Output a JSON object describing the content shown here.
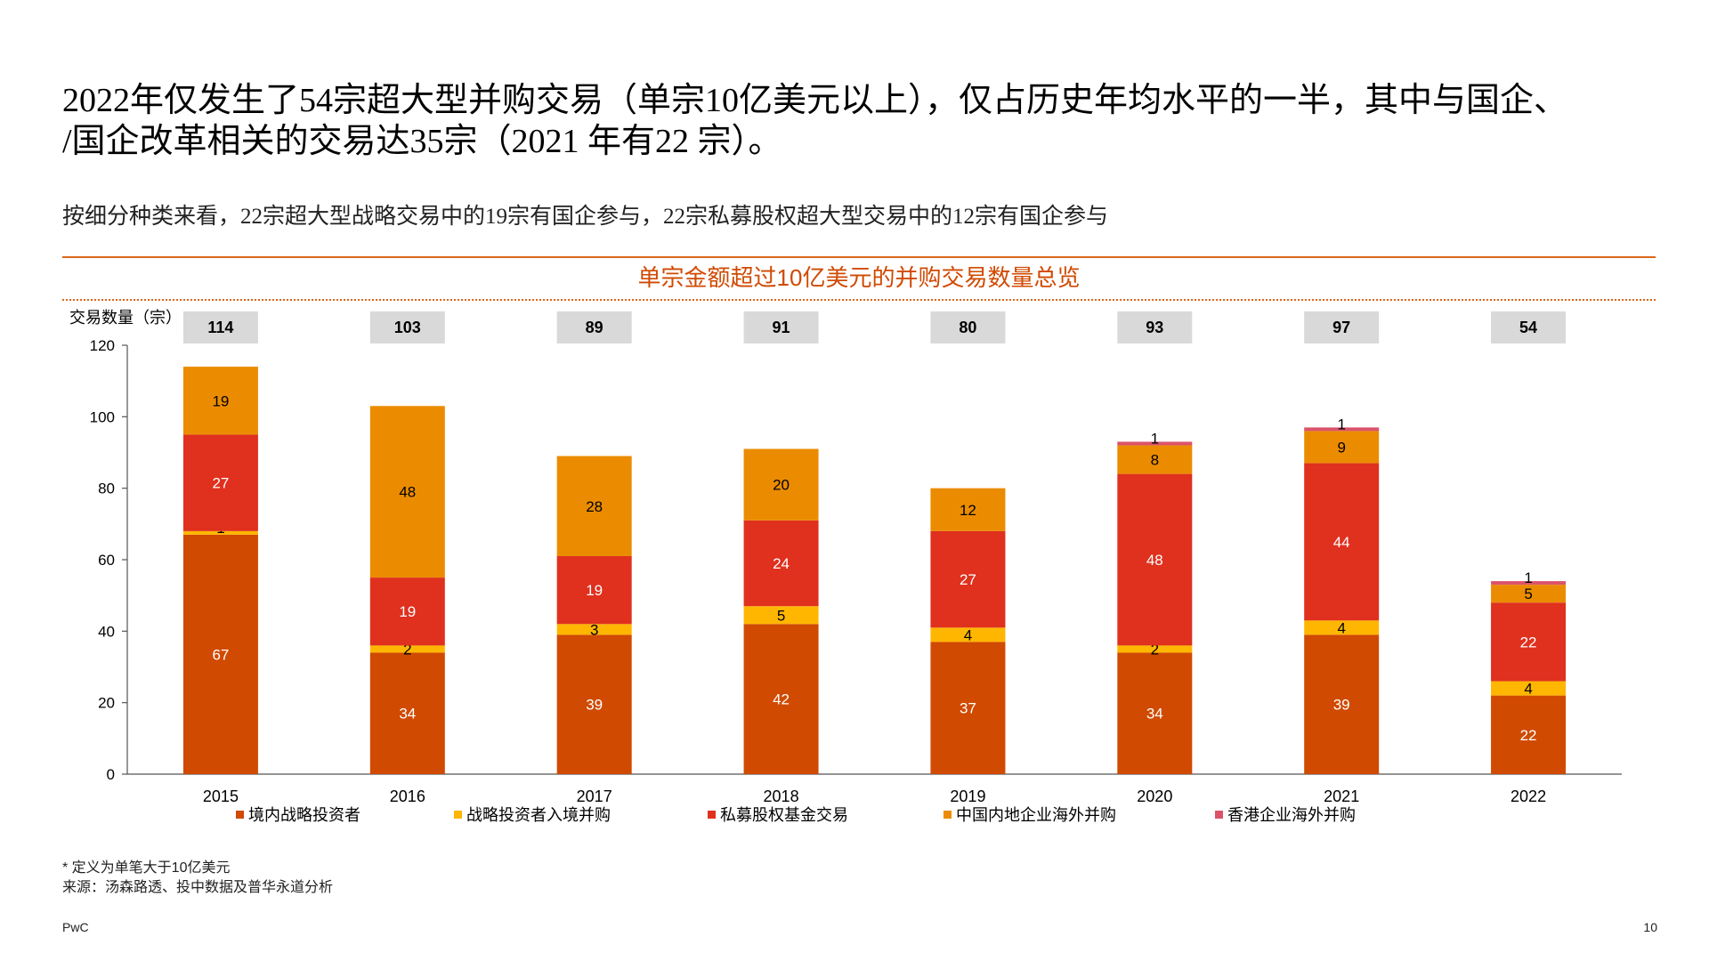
{
  "slide": {
    "headline_line1": "2022年仅发生了54宗超大型并购交易（单宗10亿美元以上），仅占历史年均水平的一半，其中与国企、",
    "headline_line2": "/国企改革相关的交易达35宗（2021 年有22 宗）。",
    "subheadline": "按细分种类来看，22宗超大型战略交易中的19宗有国企参与，22宗私募股权超大型交易中的12宗有国企参与",
    "footnote": "* 定义为单笔大于10亿美元",
    "source": "来源：汤森路透、投中数据及普华永道分析",
    "brand": "PwC",
    "page_number": "10"
  },
  "chart_data": {
    "type": "bar",
    "stacked": true,
    "title": "单宗金额超过10亿美元的并购交易数量总览",
    "ylabel": "交易数量（宗）",
    "xlabel": "",
    "ylim": [
      0,
      120
    ],
    "yticks": [
      0,
      20,
      40,
      60,
      80,
      100,
      120
    ],
    "grid": false,
    "legend_position": "bottom",
    "categories": [
      "2015",
      "2016",
      "2017",
      "2018",
      "2019",
      "2020",
      "2021",
      "2022"
    ],
    "totals": [
      114,
      103,
      89,
      91,
      80,
      93,
      97,
      54
    ],
    "series": [
      {
        "name": "境内战略投资者",
        "color": "#d04a02",
        "label_color": "#ffffff",
        "values": [
          67,
          34,
          39,
          42,
          37,
          34,
          39,
          22
        ]
      },
      {
        "name": "战略投资者入境并购",
        "color": "#ffb600",
        "label_color": "#000000",
        "values": [
          1,
          2,
          3,
          5,
          4,
          2,
          4,
          4
        ]
      },
      {
        "name": "私募股权基金交易",
        "color": "#e0301e",
        "label_color": "#ffffff",
        "values": [
          27,
          19,
          19,
          24,
          27,
          48,
          44,
          22
        ]
      },
      {
        "name": "中国内地企业海外并购",
        "color": "#eb8c00",
        "label_color": "#000000",
        "values": [
          19,
          48,
          28,
          20,
          12,
          8,
          9,
          5
        ]
      },
      {
        "name": "香港企业海外并购",
        "color": "#db536a",
        "label_color": "#000000",
        "values": [
          0,
          0,
          0,
          0,
          0,
          1,
          1,
          1
        ]
      }
    ]
  }
}
